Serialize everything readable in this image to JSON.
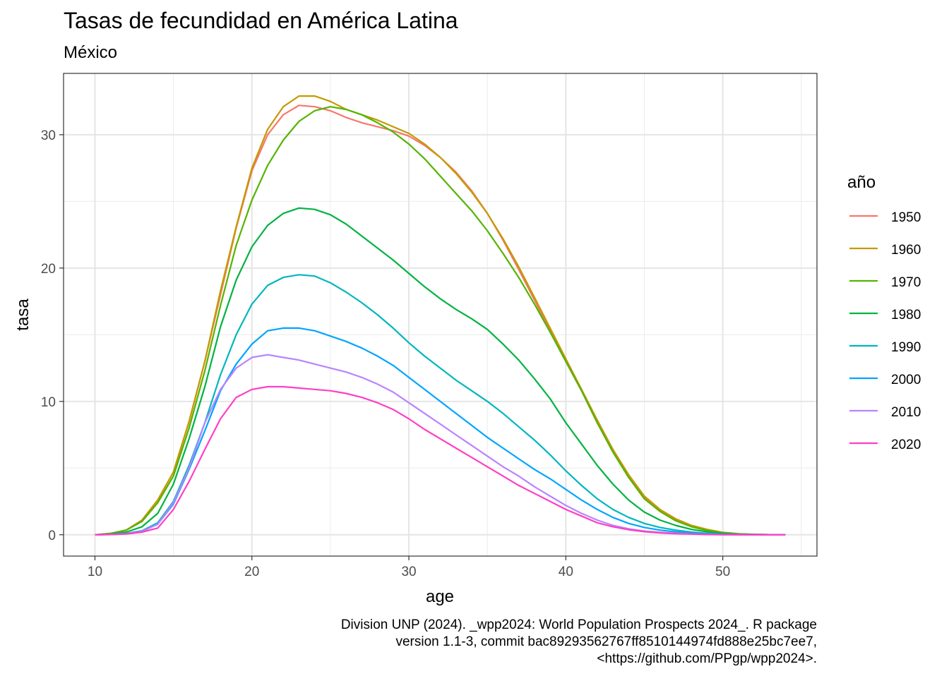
{
  "chart_data": {
    "type": "line",
    "title": "Tasas de fecundidad en América Latina",
    "subtitle": "México",
    "xlabel": "age",
    "ylabel": "tasa",
    "xlim": [
      8,
      56
    ],
    "ylim": [
      -1.6,
      34.6
    ],
    "x_ticks": [
      10,
      20,
      30,
      40,
      50
    ],
    "y_ticks": [
      0,
      10,
      20,
      30
    ],
    "grid": true,
    "legend": {
      "title": "año",
      "position": "right"
    },
    "caption": [
      "Division UNP (2024). _wpp2024: World Population Prospects 2024_. R package",
      "version 1.1-3, commit bac89293562767ff8510144974fd888e25bc7ee7,",
      "<https://github.com/PPgp/wpp2024>."
    ],
    "x": [
      10,
      11,
      12,
      13,
      14,
      15,
      16,
      17,
      18,
      19,
      20,
      21,
      22,
      23,
      24,
      25,
      26,
      27,
      28,
      29,
      30,
      31,
      32,
      33,
      34,
      35,
      36,
      37,
      38,
      39,
      40,
      41,
      42,
      43,
      44,
      45,
      46,
      47,
      48,
      49,
      50,
      51,
      52,
      53,
      54
    ],
    "series": [
      {
        "name": "1950",
        "color": "#F8766D",
        "values": [
          0,
          0.1,
          0.35,
          1.1,
          2.6,
          4.7,
          8.5,
          13,
          18,
          23,
          27.3,
          30,
          31.5,
          32.2,
          32.1,
          31.8,
          31.3,
          30.9,
          30.6,
          30.3,
          29.9,
          29.2,
          28.3,
          27.2,
          25.8,
          24.1,
          22.1,
          19.9,
          17.6,
          15.3,
          13,
          10.8,
          8.4,
          6.3,
          4.4,
          2.8,
          1.8,
          1.1,
          0.65,
          0.35,
          0.15,
          0.07,
          0.03,
          0.01,
          0
        ]
      },
      {
        "name": "1960",
        "color": "#C49A00",
        "values": [
          0,
          0.1,
          0.35,
          1.1,
          2.6,
          4.7,
          8.5,
          13,
          18.3,
          23.1,
          27.5,
          30.4,
          32.1,
          32.9,
          32.9,
          32.5,
          31.9,
          31.5,
          31.1,
          30.6,
          30.1,
          29.3,
          28.3,
          27.1,
          25.7,
          24.1,
          22.2,
          20.1,
          17.8,
          15.5,
          13.2,
          10.9,
          8.6,
          6.4,
          4.5,
          2.9,
          1.9,
          1.2,
          0.7,
          0.4,
          0.18,
          0.08,
          0.03,
          0.01,
          0
        ]
      },
      {
        "name": "1970",
        "color": "#53B400",
        "values": [
          0,
          0.1,
          0.35,
          1,
          2.4,
          4.4,
          8,
          12.3,
          17.2,
          21.7,
          25.1,
          27.7,
          29.6,
          31,
          31.8,
          32.1,
          31.9,
          31.5,
          30.9,
          30.2,
          29.3,
          28.2,
          26.9,
          25.6,
          24.3,
          22.8,
          21.1,
          19.3,
          17.3,
          15.2,
          13,
          10.8,
          8.4,
          6.2,
          4.3,
          2.7,
          1.75,
          1.05,
          0.6,
          0.32,
          0.14,
          0.06,
          0.02,
          0.01,
          0
        ]
      },
      {
        "name": "1980",
        "color": "#00B342",
        "values": [
          0,
          0.05,
          0.2,
          0.6,
          1.6,
          3.8,
          7.2,
          11.1,
          15.6,
          19.1,
          21.6,
          23.2,
          24.1,
          24.5,
          24.4,
          24,
          23.3,
          22.4,
          21.5,
          20.6,
          19.6,
          18.6,
          17.7,
          16.9,
          16.2,
          15.4,
          14.3,
          13.1,
          11.7,
          10.2,
          8.4,
          6.8,
          5.2,
          3.8,
          2.6,
          1.7,
          1.1,
          0.7,
          0.4,
          0.22,
          0.1,
          0.04,
          0.02,
          0.01,
          0
        ]
      },
      {
        "name": "1990",
        "color": "#00B6BE",
        "values": [
          0,
          0.03,
          0.1,
          0.3,
          0.9,
          2.5,
          5.2,
          8.4,
          12,
          15,
          17.3,
          18.7,
          19.3,
          19.5,
          19.4,
          18.9,
          18.2,
          17.4,
          16.5,
          15.5,
          14.4,
          13.4,
          12.5,
          11.6,
          10.8,
          10,
          9.1,
          8.1,
          7.1,
          6,
          4.8,
          3.7,
          2.7,
          1.9,
          1.3,
          0.85,
          0.55,
          0.35,
          0.2,
          0.1,
          0.05,
          0.02,
          0.01,
          0,
          0
        ]
      },
      {
        "name": "2000",
        "color": "#00A5FF",
        "values": [
          0,
          0.02,
          0.08,
          0.25,
          0.8,
          2.3,
          4.9,
          7.8,
          10.8,
          12.8,
          14.3,
          15.3,
          15.5,
          15.5,
          15.3,
          14.9,
          14.5,
          14,
          13.4,
          12.7,
          11.8,
          10.9,
          10,
          9.1,
          8.2,
          7.3,
          6.5,
          5.7,
          4.9,
          4.2,
          3.4,
          2.6,
          1.9,
          1.3,
          0.85,
          0.55,
          0.35,
          0.22,
          0.13,
          0.07,
          0.03,
          0.01,
          0.01,
          0,
          0
        ]
      },
      {
        "name": "2010",
        "color": "#B983FF",
        "values": [
          0,
          0.02,
          0.08,
          0.25,
          0.8,
          2.4,
          5,
          8.4,
          10.9,
          12.5,
          13.3,
          13.5,
          13.3,
          13.1,
          12.8,
          12.5,
          12.2,
          11.8,
          11.3,
          10.7,
          9.9,
          9.1,
          8.3,
          7.5,
          6.7,
          5.9,
          5.1,
          4.4,
          3.6,
          2.9,
          2.2,
          1.6,
          1.1,
          0.7,
          0.45,
          0.28,
          0.18,
          0.11,
          0.06,
          0.03,
          0.01,
          0.01,
          0,
          0,
          0
        ]
      },
      {
        "name": "2020",
        "color": "#FF3FC3",
        "values": [
          0,
          0.02,
          0.06,
          0.2,
          0.5,
          1.9,
          4,
          6.4,
          8.7,
          10.3,
          10.9,
          11.1,
          11.1,
          11,
          10.9,
          10.8,
          10.6,
          10.3,
          9.9,
          9.4,
          8.7,
          7.9,
          7.2,
          6.5,
          5.8,
          5.1,
          4.4,
          3.7,
          3.1,
          2.5,
          1.9,
          1.4,
          0.9,
          0.6,
          0.38,
          0.23,
          0.14,
          0.08,
          0.05,
          0.02,
          0.01,
          0,
          0,
          0,
          0
        ]
      }
    ]
  }
}
